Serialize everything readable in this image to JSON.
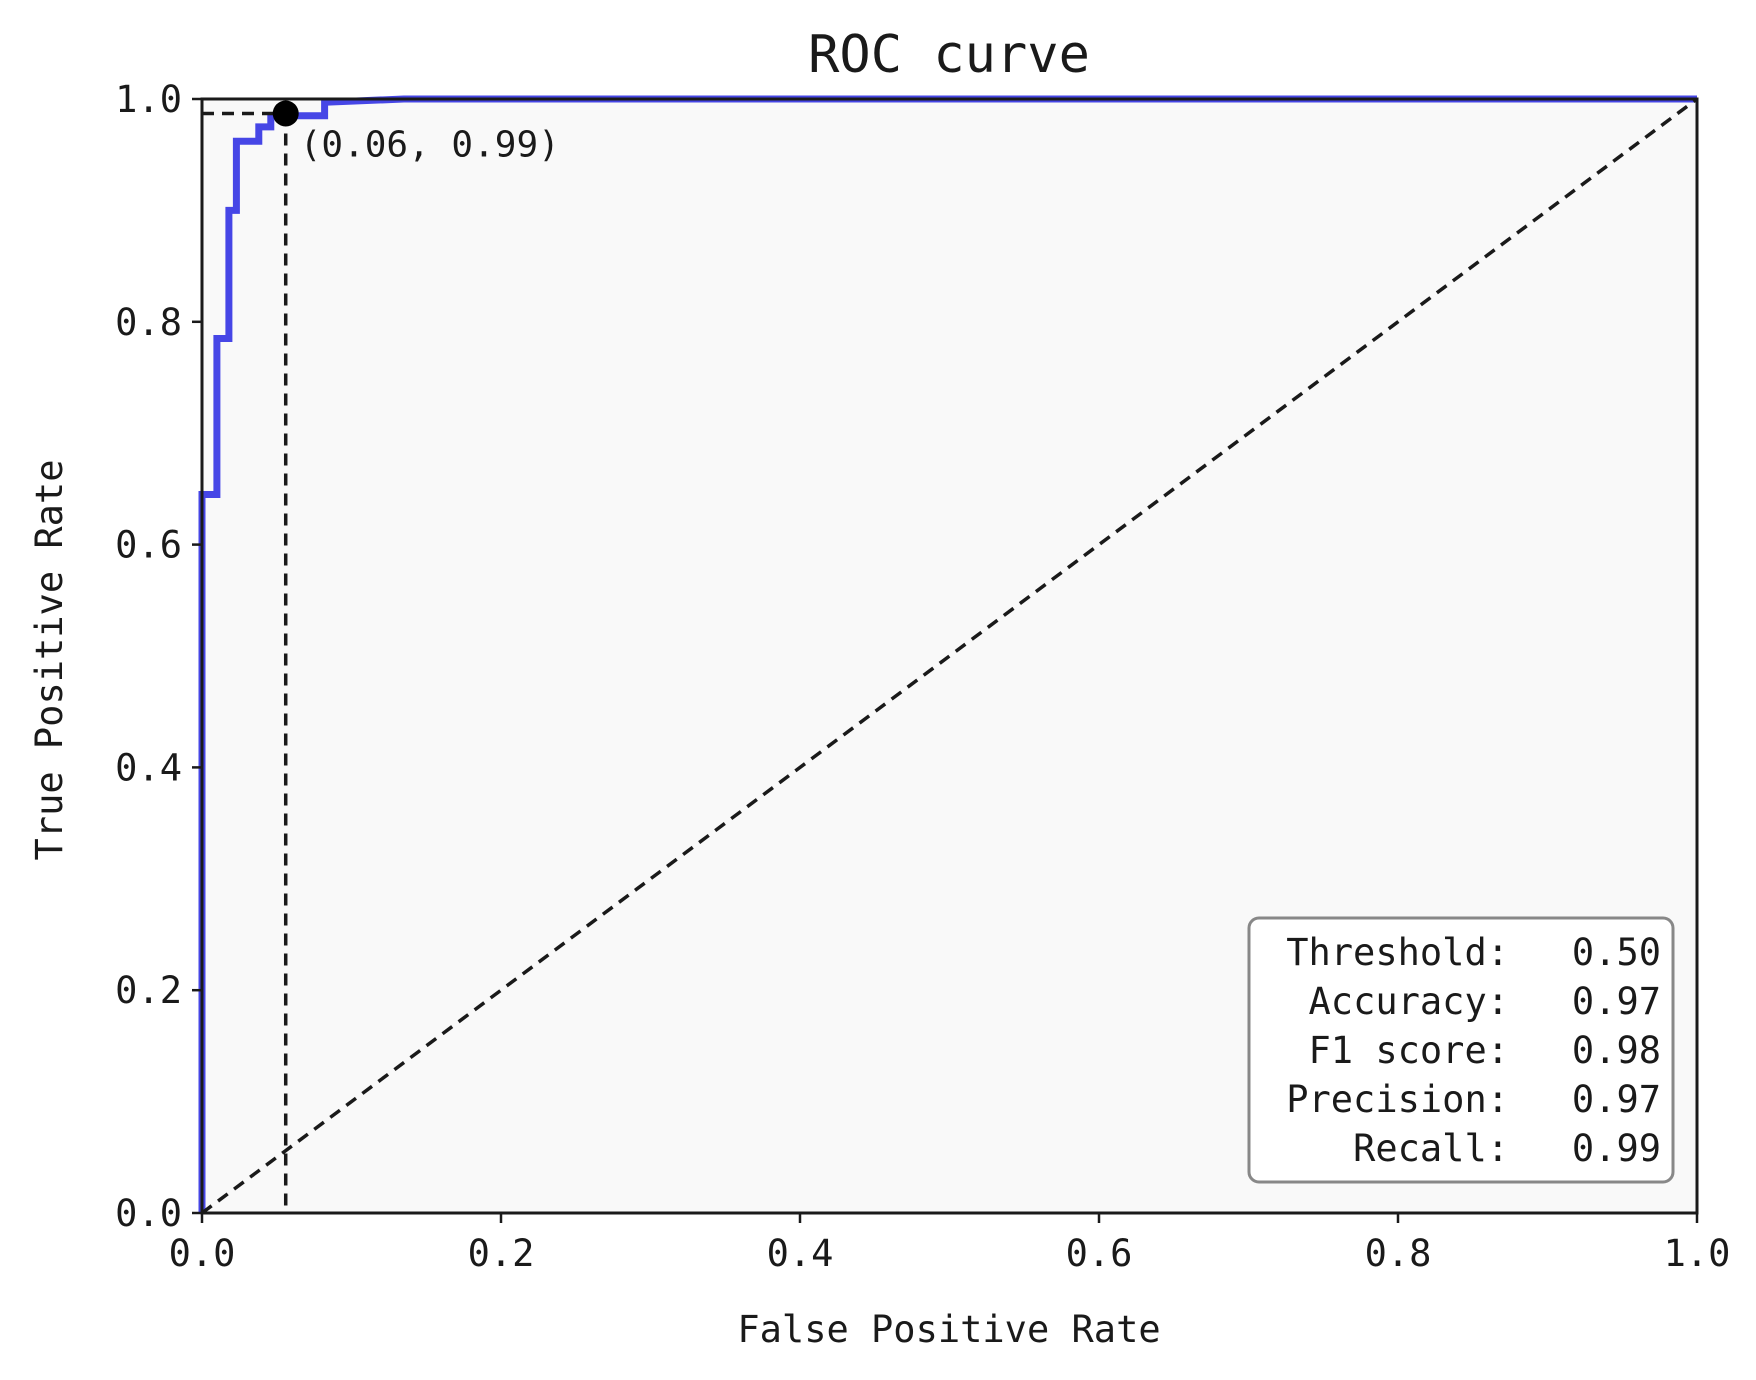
{
  "chart_data": {
    "type": "line",
    "title": "ROC curve",
    "xlabel": "False Positive Rate",
    "ylabel": "True Positive Rate",
    "xlim": [
      0.0,
      1.0
    ],
    "ylim": [
      0.0,
      1.0
    ],
    "xticks": [
      "0.0",
      "0.2",
      "0.4",
      "0.6",
      "0.8",
      "1.0"
    ],
    "yticks": [
      "0.0",
      "0.2",
      "0.4",
      "0.6",
      "0.8",
      "1.0"
    ],
    "grid": false,
    "series": [
      {
        "color": "#4646e6",
        "style": "solid",
        "x": [
          0.0,
          0.0,
          0.01,
          0.01,
          0.018,
          0.018,
          0.023,
          0.023,
          0.038,
          0.038,
          0.046,
          0.046,
          0.082,
          0.082,
          0.135,
          1.0
        ],
        "y": [
          0.0,
          0.645,
          0.645,
          0.785,
          0.785,
          0.9,
          0.9,
          0.962,
          0.962,
          0.975,
          0.975,
          0.985,
          0.985,
          0.997,
          1.0,
          1.0
        ]
      },
      {
        "color": "#1a1a1a",
        "style": "dashed",
        "x": [
          0.0,
          1.0
        ],
        "y": [
          0.0,
          1.0
        ]
      }
    ],
    "marker": {
      "x": 0.056,
      "y": 0.987,
      "label": "(0.06, 0.99)",
      "guides": "dashed"
    },
    "metrics_box": {
      "placement": "bottom-right",
      "rows": [
        {
          "label": "Threshold:",
          "value": "0.50"
        },
        {
          "label": "Accuracy:",
          "value": "0.97"
        },
        {
          "label": "F1 score:",
          "value": "0.98"
        },
        {
          "label": "Precision:",
          "value": "0.97"
        },
        {
          "label": "Recall:",
          "value": "0.99"
        }
      ]
    },
    "colors": {
      "plot_background": "#f9f9f9",
      "axis": "#1a1a1a",
      "box_border": "#888888"
    }
  }
}
